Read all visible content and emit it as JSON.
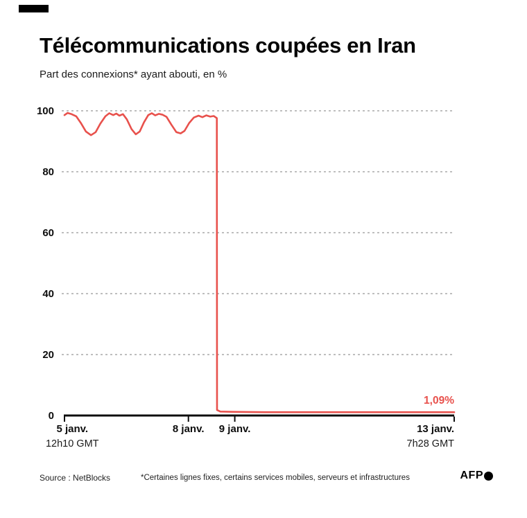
{
  "chart_data": {
    "type": "line",
    "title": "Télécommunications coupées en Iran",
    "subtitle": "Part des connexions* ayant abouti, en %",
    "ylabel": "%",
    "ylim": [
      0,
      100
    ],
    "yticks": [
      0,
      20,
      40,
      60,
      80,
      100
    ],
    "grid": "dashed-horizontal",
    "line_color": "#e8514c",
    "grid_color": "#979797",
    "axis_color": "#0d0d0d",
    "xticks": [
      {
        "f": 0.0,
        "label_f": 0.02,
        "label": "5 janv.",
        "sublabel": "12h10 GMT",
        "anchor": "middle"
      },
      {
        "f": 0.318,
        "label": "8 janv.",
        "anchor": "middle"
      },
      {
        "f": 0.437,
        "label": "9 janv.",
        "anchor": "middle"
      },
      {
        "f": 1.0,
        "label": "13 janv.",
        "sublabel": "7h28 GMT",
        "anchor": "end"
      }
    ],
    "annotation": {
      "text": "1,09%",
      "f": 1.0,
      "value": 1.09
    },
    "series": [
      {
        "name": "Part des connexions ayant abouti, en %",
        "points": [
          [
            0.0,
            98.6
          ],
          [
            0.008,
            99.3
          ],
          [
            0.018,
            98.9
          ],
          [
            0.03,
            98.2
          ],
          [
            0.042,
            96.0
          ],
          [
            0.055,
            93.2
          ],
          [
            0.068,
            92.0
          ],
          [
            0.08,
            93.0
          ],
          [
            0.092,
            95.8
          ],
          [
            0.105,
            98.2
          ],
          [
            0.115,
            99.2
          ],
          [
            0.125,
            98.6
          ],
          [
            0.133,
            99.1
          ],
          [
            0.141,
            98.4
          ],
          [
            0.15,
            98.9
          ],
          [
            0.16,
            97.2
          ],
          [
            0.172,
            94.0
          ],
          [
            0.183,
            92.3
          ],
          [
            0.193,
            93.2
          ],
          [
            0.204,
            96.2
          ],
          [
            0.215,
            98.6
          ],
          [
            0.224,
            99.2
          ],
          [
            0.233,
            98.5
          ],
          [
            0.242,
            99.0
          ],
          [
            0.252,
            98.7
          ],
          [
            0.262,
            98.0
          ],
          [
            0.274,
            95.5
          ],
          [
            0.287,
            93.0
          ],
          [
            0.298,
            92.6
          ],
          [
            0.308,
            93.4
          ],
          [
            0.32,
            96.0
          ],
          [
            0.332,
            97.8
          ],
          [
            0.344,
            98.4
          ],
          [
            0.354,
            97.9
          ],
          [
            0.364,
            98.5
          ],
          [
            0.374,
            98.1
          ],
          [
            0.383,
            98.3
          ],
          [
            0.391,
            97.6
          ],
          [
            0.3915,
            1.8
          ],
          [
            0.4,
            1.3
          ],
          [
            0.43,
            1.2
          ],
          [
            0.47,
            1.15
          ],
          [
            0.52,
            1.1
          ],
          [
            0.6,
            1.1
          ],
          [
            0.7,
            1.1
          ],
          [
            0.8,
            1.1
          ],
          [
            0.9,
            1.1
          ],
          [
            1.0,
            1.09
          ]
        ]
      }
    ]
  },
  "footer": {
    "source": "Source : NetBlocks",
    "note": "*Certaines lignes fixes, certains services mobiles, serveurs et infrastructures",
    "logo": "AFP"
  }
}
